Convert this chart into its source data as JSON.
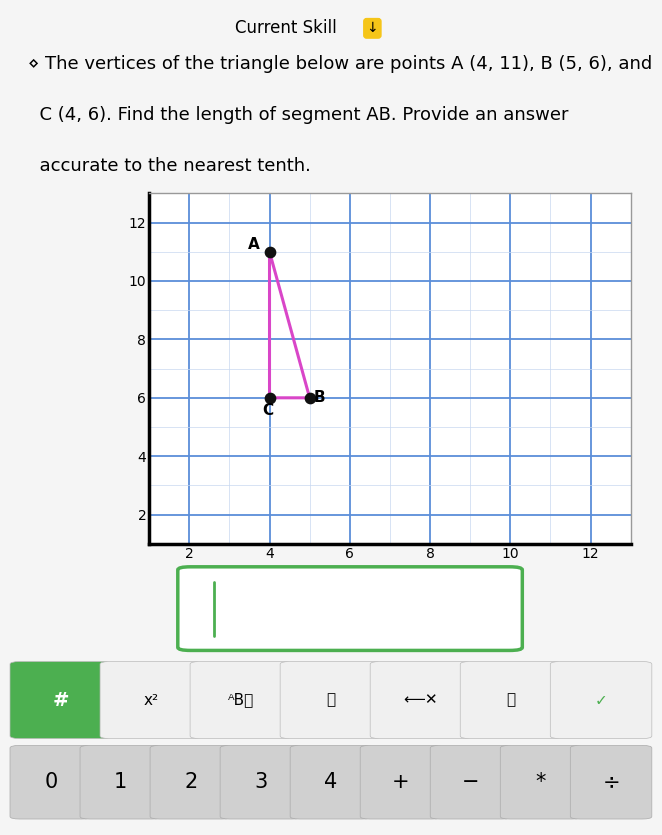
{
  "title": "Current Skill",
  "title_icon": "↓",
  "problem_line1": "⋄ The vertices of the triangle below are points A (4, 11), B (5, 6), and",
  "problem_line2": "  C (4, 6). Find the length of segment AB. Provide an answer",
  "problem_line3": "  accurate to the nearest tenth.",
  "points": {
    "A": [
      4,
      11
    ],
    "B": [
      5,
      6
    ],
    "C": [
      4,
      6
    ]
  },
  "triangle_color": "#d946c8",
  "point_color": "#111111",
  "point_size": 55,
  "grid_major_color": "#5b8dd9",
  "grid_minor_color": "#c8d8f0",
  "axis_xlim": [
    1,
    13
  ],
  "axis_ylim": [
    1,
    13
  ],
  "xticks": [
    2,
    4,
    6,
    8,
    10,
    12
  ],
  "yticks": [
    2,
    4,
    6,
    8,
    10,
    12
  ],
  "bg_color": "#f5f5f5",
  "plot_bg_color": "#ffffff",
  "answer_box_border_color": "#4caf50",
  "answer_box_bg": "#ffffff",
  "cursor_color": "#4caf50",
  "keyboard_bg": "#e8e8e8",
  "button_bg_light": "#f0f0f0",
  "button_bg_dark": "#d0d0d0",
  "green_bg": "#4caf50",
  "label_fontsize": 11,
  "tick_fontsize": 10,
  "problem_fontsize": 13,
  "kb_row2": [
    "0",
    "1",
    "2",
    "3",
    "4",
    "+",
    "−",
    "*",
    "÷"
  ]
}
